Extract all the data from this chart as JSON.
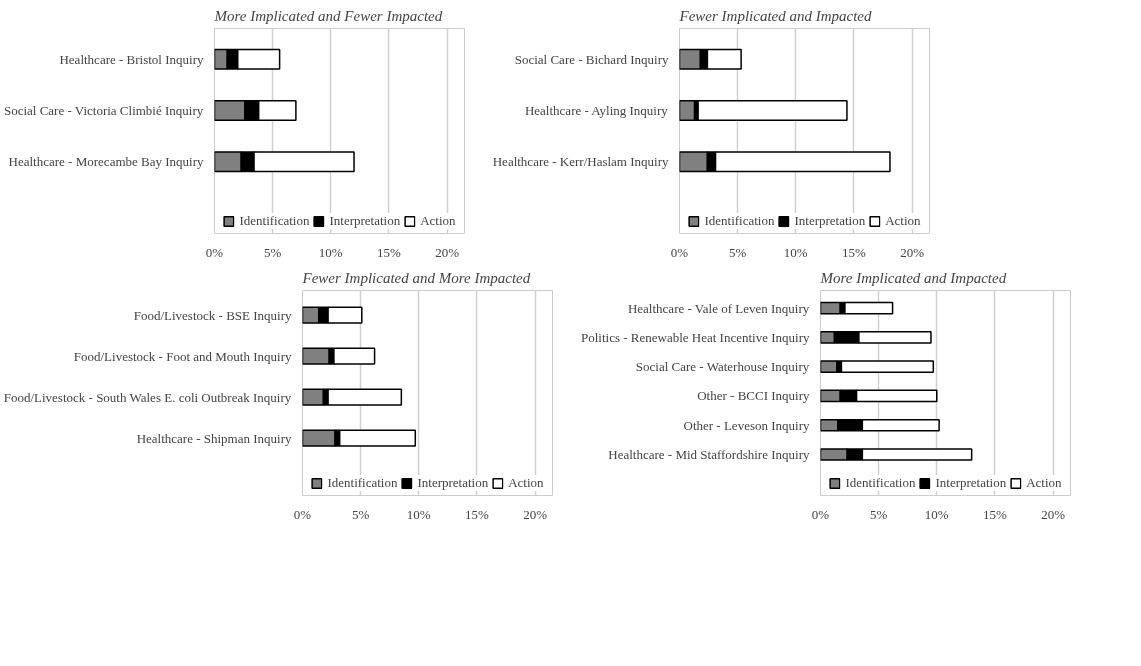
{
  "chart_data": [
    {
      "type": "bar",
      "orientation": "horizontal",
      "stacked": true,
      "title": "More Implicated and Fewer Impacted",
      "categories": [
        "Healthcare - Bristol Inquiry",
        "Social Care - Victoria Climbié Inquiry",
        "Healthcare - Morecambe Bay Inquiry"
      ],
      "series": [
        {
          "name": "Identification",
          "color": "#808080",
          "values": [
            1.1,
            2.6,
            2.3
          ]
        },
        {
          "name": "Interpretation",
          "color": "#000000",
          "values": [
            0.9,
            1.2,
            1.1
          ]
        },
        {
          "name": "Action",
          "color": "#ffffff",
          "values": [
            3.6,
            3.2,
            8.6
          ]
        }
      ],
      "xlim": [
        0,
        21.5
      ],
      "xticks": [
        {
          "value": 0,
          "label": "0%"
        },
        {
          "value": 5,
          "label": "5%"
        },
        {
          "value": 10,
          "label": "10%"
        },
        {
          "value": 15,
          "label": "15%"
        },
        {
          "value": 20,
          "label": "20%"
        }
      ],
      "grid": "x",
      "legend": "bottom"
    },
    {
      "type": "bar",
      "orientation": "horizontal",
      "stacked": true,
      "title": "Fewer Implicated and Impacted",
      "categories": [
        "Social Care - Bichard Inquiry",
        "Healthcare - Ayling Inquiry",
        "Healthcare - Kerr/Haslam Inquiry"
      ],
      "series": [
        {
          "name": "Identification",
          "color": "#808080",
          "values": [
            1.8,
            1.3,
            2.4
          ]
        },
        {
          "name": "Interpretation",
          "color": "#000000",
          "values": [
            0.6,
            0.3,
            0.7
          ]
        },
        {
          "name": "Action",
          "color": "#ffffff",
          "values": [
            2.9,
            12.8,
            15.0
          ]
        }
      ],
      "xlim": [
        0,
        21.5
      ],
      "xticks": [
        {
          "value": 0,
          "label": "0%"
        },
        {
          "value": 5,
          "label": "5%"
        },
        {
          "value": 10,
          "label": "10%"
        },
        {
          "value": 15,
          "label": "15%"
        },
        {
          "value": 20,
          "label": "20%"
        }
      ],
      "grid": "x",
      "legend": "bottom"
    },
    {
      "type": "bar",
      "orientation": "horizontal",
      "stacked": true,
      "title": "Fewer Implicated and More Impacted",
      "categories": [
        "Food/Livestock - BSE Inquiry",
        "Food/Livestock - Foot and Mouth Inquiry",
        "Food/Livestock - South Wales E. coli Outbreak Inquiry",
        "Healthcare - Shipman Inquiry"
      ],
      "series": [
        {
          "name": "Identification",
          "color": "#808080",
          "values": [
            1.4,
            2.3,
            1.8,
            2.8
          ]
        },
        {
          "name": "Interpretation",
          "color": "#000000",
          "values": [
            0.8,
            0.4,
            0.4,
            0.4
          ]
        },
        {
          "name": "Action",
          "color": "#ffffff",
          "values": [
            2.9,
            3.5,
            6.3,
            6.5
          ]
        }
      ],
      "xlim": [
        0,
        21.5
      ],
      "xticks": [
        {
          "value": 0,
          "label": "0%"
        },
        {
          "value": 5,
          "label": "5%"
        },
        {
          "value": 10,
          "label": "10%"
        },
        {
          "value": 15,
          "label": "15%"
        },
        {
          "value": 20,
          "label": "20%"
        }
      ],
      "grid": "x",
      "legend": "bottom"
    },
    {
      "type": "bar",
      "orientation": "horizontal",
      "stacked": true,
      "title": "More Implicated and Impacted",
      "categories": [
        "Healthcare - Vale of Leven Inquiry",
        "Politics - Renewable Heat Incentive Inquiry",
        "Social Care - Waterhouse Inquiry",
        "Other - BCCI Inquiry",
        "Other - Leveson Inquiry",
        "Healthcare - Mid Staffordshire Inquiry"
      ],
      "series": [
        {
          "name": "Identification",
          "color": "#808080",
          "values": [
            1.7,
            1.2,
            1.4,
            1.7,
            1.5,
            2.3
          ]
        },
        {
          "name": "Interpretation",
          "color": "#000000",
          "values": [
            0.4,
            2.1,
            0.4,
            1.4,
            2.1,
            1.3
          ]
        },
        {
          "name": "Action",
          "color": "#ffffff",
          "values": [
            4.1,
            6.2,
            7.9,
            6.9,
            6.6,
            9.4
          ]
        }
      ],
      "xlim": [
        0,
        21.5
      ],
      "xticks": [
        {
          "value": 0,
          "label": "0%"
        },
        {
          "value": 5,
          "label": "5%"
        },
        {
          "value": 10,
          "label": "10%"
        },
        {
          "value": 15,
          "label": "15%"
        },
        {
          "value": 20,
          "label": "20%"
        }
      ],
      "grid": "x",
      "legend": "bottom"
    }
  ]
}
